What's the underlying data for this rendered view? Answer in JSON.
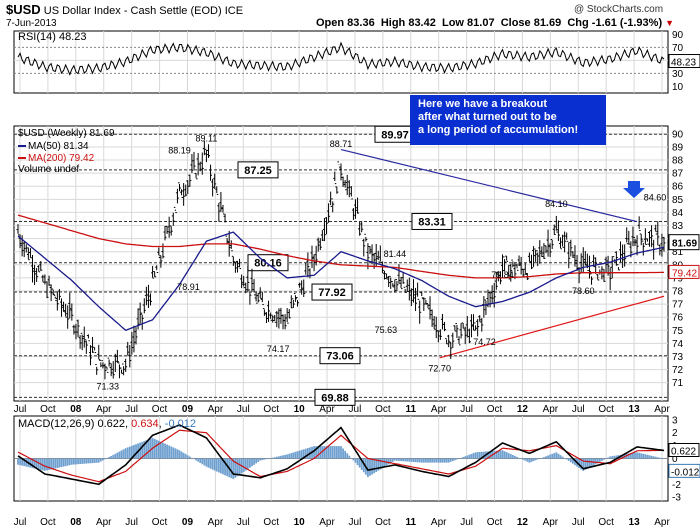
{
  "header": {
    "symbol": "$USD",
    "name": "US Dollar Index - Cash Settle (EOD)",
    "exchange": "ICE",
    "date": "7-Jun-2013",
    "open": "Open 83.36",
    "high": "High 83.42",
    "low": "Low 81.07",
    "close": "Close 81.69",
    "change": "Chg -1.61 (-1.93%)",
    "change_arrow": "▼",
    "watermark": "@ StockCharts.com"
  },
  "rsi": {
    "label": "RSI(14) 48.23",
    "current": "48.23",
    "ticks": [
      90,
      70,
      50,
      30,
      10
    ]
  },
  "main": {
    "label": "$USD (Weekly) 81.69",
    "ma50_label": "MA(50) 81.34",
    "ma200_label": "MA(200) 79.42",
    "volume_label": "Volume undef",
    "price_tag": "81.69",
    "ma200_tag": "79.42",
    "callout": "Here we have a breakout after what turned out to be a long period of accumulation!",
    "level_boxes": [
      "89.97",
      "87.25",
      "83.31",
      "80.16",
      "77.92",
      "73.06",
      "69.88"
    ],
    "peak_labels": [
      "88.19",
      "89.11",
      "88.71",
      "84.10",
      "84.60",
      "81.44",
      "79.84",
      "78.91",
      "74.17",
      "75.63",
      "72.70",
      "74.72",
      "78.60",
      "71.33"
    ],
    "yticks": [
      90,
      89,
      88,
      87,
      86,
      85,
      84,
      83,
      82,
      81,
      80,
      79,
      78,
      77,
      76,
      75,
      74,
      73,
      72,
      71
    ]
  },
  "macd": {
    "label_prefix": "MACD(12,26,9)",
    "macd_value": "0.622",
    "signal_value": "0.634",
    "hist_value": "-0.012",
    "tag_macd": "0.622",
    "tag_hist": "-0.012",
    "ticks": [
      "3",
      "2",
      "1",
      "0",
      "-1",
      "-2",
      "-3"
    ]
  },
  "x_axis_labels": [
    "Jul",
    "Oct",
    "08",
    "Apr",
    "Jul",
    "Oct",
    "09",
    "Apr",
    "Jul",
    "Oct",
    "10",
    "Apr",
    "Jul",
    "Oct",
    "11",
    "Apr",
    "Jul",
    "Oct",
    "12",
    "Apr",
    "Jul",
    "Oct",
    "13",
    "Apr"
  ],
  "colors": {
    "price": "#000000",
    "ma50": "#1a1a8c",
    "ma200": "#cc1010",
    "trend_blue": "#2a2aa0",
    "trend_red": "#e01818",
    "callout_bg": "#0a2fd1",
    "macd_hist": "#6fa0d0",
    "grid": "#d8d8d8",
    "dashed": "#333333"
  },
  "chart_data": {
    "type": "line",
    "title": "$USD US Dollar Index - Cash Settle (EOD) Weekly",
    "x": [
      "2007-06",
      "2007-09",
      "2007-12",
      "2008-03",
      "2008-06",
      "2008-09",
      "2008-12",
      "2009-03",
      "2009-06",
      "2009-09",
      "2009-12",
      "2010-03",
      "2010-06",
      "2010-09",
      "2010-12",
      "2011-03",
      "2011-06",
      "2011-09",
      "2011-12",
      "2012-03",
      "2012-06",
      "2012-09",
      "2012-12",
      "2013-03",
      "2013-06"
    ],
    "series": [
      {
        "name": "$USD (Weekly)",
        "values": [
          82.5,
          78.5,
          76.0,
          72.5,
          72.5,
          78.5,
          85.5,
          88.5,
          80.5,
          77.0,
          75.8,
          80.5,
          87.5,
          81.0,
          78.8,
          77.0,
          74.5,
          75.0,
          79.8,
          79.8,
          82.5,
          79.8,
          79.5,
          82.3,
          81.69
        ]
      },
      {
        "name": "MA(50)",
        "values": [
          82.2,
          80.5,
          78.8,
          76.8,
          75.0,
          75.8,
          78.5,
          81.8,
          82.5,
          80.5,
          79.0,
          79.2,
          81.0,
          80.3,
          79.7,
          78.8,
          77.6,
          76.8,
          77.2,
          77.9,
          79.0,
          79.8,
          80.2,
          80.9,
          81.34
        ]
      },
      {
        "name": "MA(200)",
        "values": [
          83.8,
          83.2,
          82.6,
          82.0,
          81.6,
          81.4,
          81.4,
          81.6,
          81.6,
          81.2,
          80.7,
          80.3,
          80.0,
          79.9,
          79.8,
          79.5,
          79.2,
          79.0,
          79.0,
          79.1,
          79.3,
          79.4,
          79.4,
          79.4,
          79.42
        ]
      }
    ],
    "ylim": [
      70,
      90.5
    ],
    "key_levels": [
      89.97,
      87.25,
      83.31,
      80.16,
      77.92,
      73.06,
      69.88
    ],
    "annotations": [
      {
        "label": "88.19",
        "x": "2008-12",
        "y": 88.19
      },
      {
        "label": "89.11",
        "x": "2009-03",
        "y": 89.11
      },
      {
        "label": "88.71",
        "x": "2010-06",
        "y": 88.71
      },
      {
        "label": "84.10",
        "x": "2012-06",
        "y": 84.1
      },
      {
        "label": "84.60",
        "x": "2013-05",
        "y": 84.6
      },
      {
        "label": "81.44",
        "x": "2010-12",
        "y": 81.44
      },
      {
        "label": "79.84",
        "x": "2011-12",
        "y": 79.84
      },
      {
        "label": "78.91",
        "x": "2009-01",
        "y": 78.91
      },
      {
        "label": "74.17",
        "x": "2009-11",
        "y": 74.17
      },
      {
        "label": "75.63",
        "x": "2010-11",
        "y": 75.63
      },
      {
        "label": "72.70",
        "x": "2011-05",
        "y": 72.7
      },
      {
        "label": "74.72",
        "x": "2011-10",
        "y": 74.72
      },
      {
        "label": "78.60",
        "x": "2012-09",
        "y": 78.6
      },
      {
        "label": "71.33",
        "x": "2008-04",
        "y": 71.33
      }
    ],
    "trendlines": [
      {
        "name": "resistance",
        "from": {
          "x": "2010-06",
          "y": 88.8
        },
        "to": {
          "x": "2013-03",
          "y": 83.3
        }
      },
      {
        "name": "support",
        "from": {
          "x": "2011-05",
          "y": 72.9
        },
        "to": {
          "x": "2013-06",
          "y": 77.6
        }
      }
    ],
    "rsi_values": [
      55,
      40,
      35,
      38,
      48,
      66,
      70,
      62,
      45,
      42,
      40,
      55,
      70,
      44,
      48,
      40,
      38,
      45,
      60,
      55,
      63,
      46,
      52,
      65,
      48.23
    ],
    "macd_values": [
      0.2,
      -1.2,
      -1.6,
      -2.0,
      -0.5,
      1.8,
      2.6,
      1.6,
      -1.2,
      -1.5,
      -0.8,
      0.6,
      2.4,
      -0.9,
      -0.5,
      -1.0,
      -1.4,
      -0.3,
      1.2,
      0.4,
      1.3,
      -0.8,
      -0.3,
      0.9,
      0.622
    ],
    "signal_values": [
      0.5,
      -0.6,
      -1.3,
      -1.8,
      -1.0,
      0.8,
      2.2,
      2.0,
      -0.2,
      -1.4,
      -1.0,
      0.0,
      1.8,
      0.0,
      -0.4,
      -0.8,
      -1.2,
      -0.6,
      0.8,
      0.6,
      1.0,
      -0.2,
      -0.4,
      0.6,
      0.634
    ],
    "xlabel": "",
    "ylabel": ""
  }
}
